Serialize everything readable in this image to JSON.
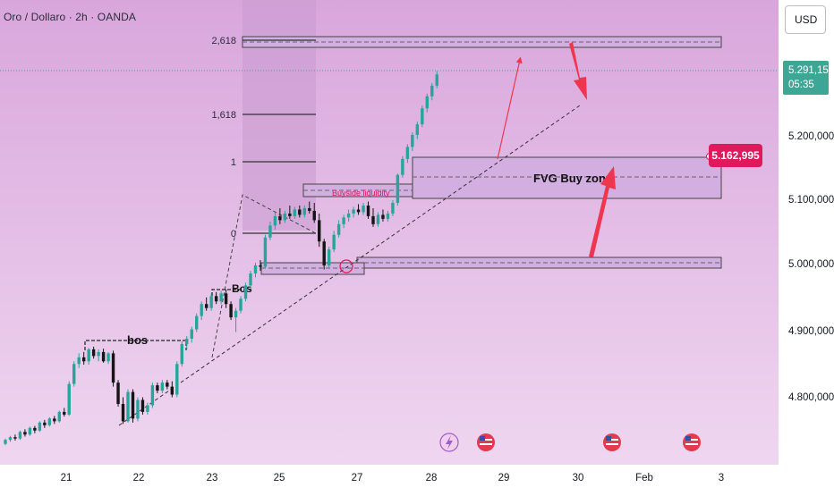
{
  "header": {
    "symbol_legend": "Oro / Dollaro · 2h · OANDA",
    "currency_button": "USD"
  },
  "last_price": {
    "value": "5.291,150",
    "countdown": "05:35",
    "color": "#3ea695"
  },
  "level_tag": {
    "value": "5.162,995",
    "color": "#e0195c"
  },
  "annotations": {
    "fvg_zone": "FVG Buy zone",
    "buyside": "Buyside liquidity",
    "bos_upper": "Bos",
    "bos_lower": "bos"
  },
  "fib_levels": [
    {
      "label": "2,618"
    },
    {
      "label": "1,618"
    },
    {
      "label": "1"
    },
    {
      "label": "0"
    }
  ],
  "event_icons": [
    "lightning-icon",
    "us-flag-icon",
    "us-flag-icon",
    "us-flag-icon"
  ],
  "colors": {
    "background": "#e1a9e4",
    "up_candle": "#26a69a",
    "down_candle": "#151515",
    "arrow": "#f0364f",
    "zone_fill": "#d3aee0"
  },
  "chart_data": {
    "type": "candlestick",
    "symbol": "Oro / Dollaro",
    "timeframe": "2h",
    "broker": "OANDA",
    "x_tick_labels": [
      "21",
      "22",
      "23",
      "25",
      "26",
      "27",
      "28",
      "29",
      "30",
      "Feb",
      "3"
    ],
    "y_tick_labels": [
      "4.800,000",
      "4.900,000",
      "5.000,000",
      "5.100,000",
      "5.200,000",
      "5.291,150"
    ],
    "ylim": [
      4730,
      5345
    ],
    "last_price": 5291.15,
    "fib_levels": [
      {
        "ratio": "2,618",
        "price": 5330
      },
      {
        "ratio": "1,618",
        "price": 5218
      },
      {
        "ratio": "1",
        "price": 5153
      },
      {
        "ratio": "0",
        "price": 5050
      }
    ],
    "zones": [
      {
        "name": "2,618 target zone",
        "top": 5340,
        "bottom": 5328
      },
      {
        "name": "FVG Buy zone",
        "top": 5164,
        "bottom": 5101
      },
      {
        "name": "Buyside liquidity",
        "top": 5120,
        "bottom": 5106
      },
      {
        "name": "demand zone",
        "top": 5012,
        "bottom": 4998
      },
      {
        "name": "lower zone",
        "top": 5003,
        "bottom": 4990
      }
    ],
    "ohlc": [
      [
        4736,
        4744,
        4734,
        4742
      ],
      [
        4742,
        4748,
        4739,
        4746
      ],
      [
        4746,
        4750,
        4741,
        4744
      ],
      [
        4744,
        4756,
        4742,
        4754
      ],
      [
        4754,
        4758,
        4747,
        4750
      ],
      [
        4750,
        4762,
        4748,
        4760
      ],
      [
        4760,
        4763,
        4752,
        4756
      ],
      [
        4756,
        4770,
        4754,
        4768
      ],
      [
        4768,
        4772,
        4760,
        4764
      ],
      [
        4764,
        4776,
        4762,
        4774
      ],
      [
        4774,
        4778,
        4766,
        4770
      ],
      [
        4770,
        4786,
        4768,
        4784
      ],
      [
        4784,
        4790,
        4777,
        4780
      ],
      [
        4780,
        4830,
        4778,
        4826
      ],
      [
        4826,
        4860,
        4822,
        4856
      ],
      [
        4856,
        4872,
        4850,
        4866
      ],
      [
        4866,
        4874,
        4855,
        4860
      ],
      [
        4860,
        4880,
        4855,
        4878
      ],
      [
        4878,
        4882,
        4864,
        4868
      ],
      [
        4868,
        4878,
        4860,
        4874
      ],
      [
        4874,
        4879,
        4858,
        4860
      ],
      [
        4860,
        4874,
        4856,
        4872
      ],
      [
        4872,
        4876,
        4822,
        4828
      ],
      [
        4828,
        4832,
        4792,
        4796
      ],
      [
        4796,
        4806,
        4766,
        4770
      ],
      [
        4770,
        4818,
        4768,
        4814
      ],
      [
        4814,
        4818,
        4768,
        4774
      ],
      [
        4774,
        4806,
        4770,
        4802
      ],
      [
        4802,
        4806,
        4780,
        4784
      ],
      [
        4784,
        4798,
        4780,
        4794
      ],
      [
        4794,
        4828,
        4790,
        4824
      ],
      [
        4824,
        4828,
        4812,
        4816
      ],
      [
        4816,
        4832,
        4812,
        4828
      ],
      [
        4828,
        4832,
        4818,
        4822
      ],
      [
        4822,
        4830,
        4806,
        4810
      ],
      [
        4810,
        4860,
        4806,
        4856
      ],
      [
        4856,
        4890,
        4852,
        4886
      ],
      [
        4886,
        4898,
        4878,
        4894
      ],
      [
        4894,
        4912,
        4888,
        4908
      ],
      [
        4908,
        4932,
        4904,
        4928
      ],
      [
        4928,
        4950,
        4922,
        4946
      ],
      [
        4946,
        4956,
        4936,
        4940
      ],
      [
        4940,
        4962,
        4936,
        4958
      ],
      [
        4958,
        4964,
        4946,
        4950
      ],
      [
        4950,
        4966,
        4946,
        4962
      ],
      [
        4962,
        4968,
        4940,
        4946
      ],
      [
        4946,
        4950,
        4922,
        4926
      ],
      [
        4926,
        4940,
        4904,
        4936
      ],
      [
        4936,
        4958,
        4932,
        4954
      ],
      [
        4954,
        4978,
        4950,
        4974
      ],
      [
        4974,
        4996,
        4970,
        4992
      ],
      [
        4992,
        5008,
        4986,
        5004
      ],
      [
        5004,
        5012,
        4996,
        5002
      ],
      [
        5002,
        5050,
        5000,
        5046
      ],
      [
        5046,
        5070,
        5042,
        5064
      ],
      [
        5064,
        5084,
        5058,
        5078
      ],
      [
        5078,
        5090,
        5066,
        5072
      ],
      [
        5072,
        5086,
        5068,
        5082
      ],
      [
        5082,
        5094,
        5074,
        5078
      ],
      [
        5078,
        5092,
        5074,
        5088
      ],
      [
        5088,
        5094,
        5076,
        5080
      ],
      [
        5080,
        5094,
        5076,
        5090
      ],
      [
        5090,
        5100,
        5082,
        5086
      ],
      [
        5086,
        5098,
        5068,
        5072
      ],
      [
        5072,
        5082,
        5032,
        5040
      ],
      [
        5040,
        5044,
        4998,
        5004
      ],
      [
        5004,
        5032,
        5000,
        5028
      ],
      [
        5028,
        5056,
        5024,
        5050
      ],
      [
        5050,
        5072,
        5046,
        5066
      ],
      [
        5066,
        5080,
        5060,
        5076
      ],
      [
        5076,
        5088,
        5070,
        5082
      ],
      [
        5082,
        5092,
        5076,
        5088
      ],
      [
        5088,
        5096,
        5080,
        5084
      ],
      [
        5084,
        5098,
        5080,
        5094
      ],
      [
        5094,
        5100,
        5074,
        5078
      ],
      [
        5078,
        5090,
        5062,
        5066
      ],
      [
        5066,
        5084,
        5062,
        5080
      ],
      [
        5080,
        5088,
        5070,
        5074
      ],
      [
        5074,
        5086,
        5070,
        5082
      ],
      [
        5082,
        5102,
        5078,
        5098
      ],
      [
        5098,
        5142,
        5094,
        5140
      ],
      [
        5140,
        5168,
        5136,
        5164
      ],
      [
        5164,
        5186,
        5158,
        5182
      ],
      [
        5182,
        5204,
        5176,
        5200
      ],
      [
        5200,
        5220,
        5194,
        5216
      ],
      [
        5216,
        5244,
        5212,
        5240
      ],
      [
        5240,
        5262,
        5234,
        5258
      ],
      [
        5258,
        5278,
        5252,
        5274
      ],
      [
        5274,
        5296,
        5270,
        5291
      ]
    ]
  }
}
